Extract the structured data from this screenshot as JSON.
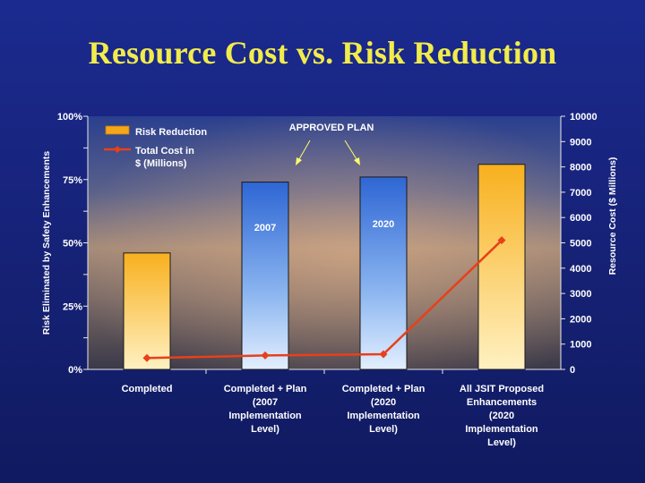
{
  "slide": {
    "title": "Resource Cost vs. Risk Reduction"
  },
  "chart_data": {
    "type": "bar",
    "title": "",
    "categories": [
      "Completed",
      "Completed + Plan (2007 Implementation Level)",
      "Completed + Plan (2020 Implementation Level)",
      "All JSIT Proposed Enhancements (2020 Implementation Level)"
    ],
    "category_lines": [
      [
        "Completed"
      ],
      [
        "Completed + Plan",
        "(2007",
        "Implementation",
        "Level)"
      ],
      [
        "Completed + Plan",
        "(2020",
        "Implementation",
        "Level)"
      ],
      [
        "All JSIT Proposed",
        "Enhancements",
        "(2020",
        "Implementation",
        "Level)"
      ]
    ],
    "series": [
      {
        "name": "Risk Reduction",
        "type": "bar",
        "axis": "left",
        "values": [
          46,
          74,
          76,
          81
        ]
      },
      {
        "name": "Total Cost in $ (Millions)",
        "name_lines": [
          "Total Cost in",
          "$ (Millions)"
        ],
        "type": "line",
        "axis": "right",
        "values": [
          450,
          550,
          600,
          5100
        ]
      }
    ],
    "bar_labels": [
      "",
      "2007",
      "2020",
      ""
    ],
    "bar_colors": [
      "orange",
      "blue",
      "blue",
      "orange"
    ],
    "ylabel": "Risk Eliminated by Safety Enhancements",
    "y2label": "Resource Cost ($ Millions)",
    "ylim": [
      0,
      100
    ],
    "y2lim": [
      0,
      10000
    ],
    "yticks": [
      "0%",
      "25%",
      "50%",
      "75%",
      "100%"
    ],
    "yticks_values": [
      0,
      25,
      50,
      75,
      100
    ],
    "y2ticks": [
      0,
      1000,
      2000,
      3000,
      4000,
      5000,
      6000,
      7000,
      8000,
      9000,
      10000
    ],
    "annotation": "APPROVED PLAN",
    "legend_position": "top-left",
    "grid": false,
    "colors": {
      "orange": "#f5a71c",
      "blue": "#2f6ad6",
      "line": "#e8401a",
      "title": "#f2ec4a"
    }
  }
}
